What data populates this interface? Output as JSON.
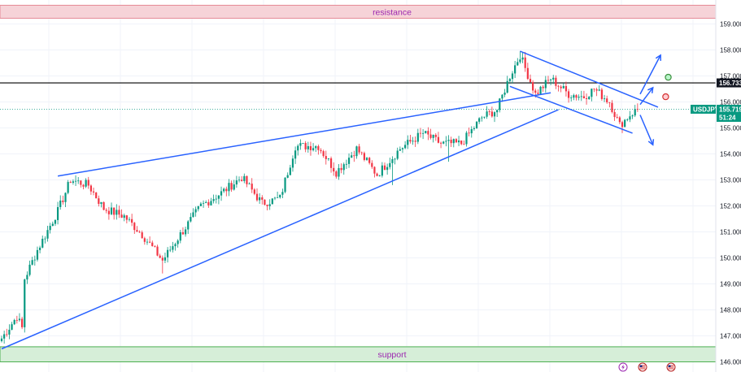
{
  "chart_data": {
    "type": "candlestick",
    "symbol": "USDJPY",
    "ylim": [
      146.0,
      159.75
    ],
    "y_ticks": [
      "159.000",
      "158.000",
      "157.000",
      "156.000",
      "155.000",
      "154.000",
      "153.000",
      "152.000",
      "151.000",
      "150.000",
      "149.000",
      "148.000",
      "147.000",
      "146.000"
    ],
    "grid": true,
    "zones": [
      {
        "name": "resistance",
        "label": "resistance",
        "low": 159.22,
        "high": 159.72,
        "color": "#f6d3d8",
        "border": "#e58a96",
        "text_color": "#9c27b0"
      },
      {
        "name": "support",
        "label": "support",
        "low": 146.0,
        "high": 146.58,
        "color": "#d6eed8",
        "border": "#4caf50",
        "text_color": "#9c27b0"
      }
    ],
    "horizontal_line": {
      "value": 156.733,
      "label": "156.733",
      "color": "#000000"
    },
    "last_price": {
      "value": 155.719,
      "label": "155.719",
      "countdown": "51:24",
      "color": "#089981"
    },
    "colors": {
      "up": "#089981",
      "down": "#f23645",
      "trendline": "#2962ff",
      "grid": "#f0f3fa"
    },
    "key_points": [
      {
        "bar": 0,
        "price": 146.9
      },
      {
        "bar": 6,
        "price": 147.75
      },
      {
        "bar": 8,
        "price": 147.3
      },
      {
        "bar": 9,
        "price": 149.2
      },
      {
        "bar": 14,
        "price": 150.3
      },
      {
        "bar": 22,
        "price": 151.8
      },
      {
        "bar": 27,
        "price": 153.0
      },
      {
        "bar": 34,
        "price": 152.8
      },
      {
        "bar": 40,
        "price": 151.9
      },
      {
        "bar": 48,
        "price": 151.6
      },
      {
        "bar": 55,
        "price": 150.9
      },
      {
        "bar": 63,
        "price": 149.9
      },
      {
        "bar": 70,
        "price": 150.9
      },
      {
        "bar": 78,
        "price": 152.0
      },
      {
        "bar": 86,
        "price": 152.5
      },
      {
        "bar": 94,
        "price": 153.1
      },
      {
        "bar": 102,
        "price": 152.1
      },
      {
        "bar": 109,
        "price": 152.3
      },
      {
        "bar": 115,
        "price": 154.3
      },
      {
        "bar": 124,
        "price": 154.3
      },
      {
        "bar": 131,
        "price": 153.3
      },
      {
        "bar": 139,
        "price": 154.2
      },
      {
        "bar": 147,
        "price": 153.2
      },
      {
        "bar": 156,
        "price": 154.2
      },
      {
        "bar": 165,
        "price": 154.8
      },
      {
        "bar": 172,
        "price": 154.4
      },
      {
        "bar": 180,
        "price": 154.4
      },
      {
        "bar": 188,
        "price": 155.4
      },
      {
        "bar": 194,
        "price": 155.7
      },
      {
        "bar": 199,
        "price": 157.0
      },
      {
        "bar": 203,
        "price": 157.8
      },
      {
        "bar": 209,
        "price": 156.3
      },
      {
        "bar": 215,
        "price": 156.9
      },
      {
        "bar": 222,
        "price": 156.3
      },
      {
        "bar": 228,
        "price": 156.2
      },
      {
        "bar": 232,
        "price": 156.5
      },
      {
        "bar": 238,
        "price": 156.0
      },
      {
        "bar": 242,
        "price": 155.1
      },
      {
        "bar": 246,
        "price": 155.5
      },
      {
        "bar": 249,
        "price": 155.72
      }
    ],
    "spikes": [
      {
        "bar": 175,
        "price": 153.7,
        "dir": "low"
      },
      {
        "bar": 153,
        "price": 152.8,
        "dir": "low"
      },
      {
        "bar": 63,
        "price": 149.4,
        "dir": "low"
      },
      {
        "bar": 203,
        "price": 157.95,
        "dir": "high"
      },
      {
        "bar": 243,
        "price": 154.8,
        "dir": "low"
      }
    ],
    "trendlines": [
      {
        "from": {
          "bar": 0,
          "price": 146.5
        },
        "to": {
          "bar": 218,
          "price": 155.7
        }
      },
      {
        "from": {
          "bar": 22,
          "price": 153.15
        },
        "to": {
          "bar": 215,
          "price": 156.35
        }
      },
      {
        "from": {
          "bar": 203,
          "price": 157.95
        },
        "to": {
          "bar": 257,
          "price": 155.8
        }
      },
      {
        "from": {
          "bar": 199,
          "price": 156.6
        },
        "to": {
          "bar": 247,
          "price": 154.8
        }
      }
    ],
    "arrows": [
      {
        "from": {
          "bar": 250,
          "price": 156.3
        },
        "to": {
          "bar": 258,
          "price": 157.8
        }
      },
      {
        "from": {
          "bar": 250,
          "price": 155.9
        },
        "to": {
          "bar": 255,
          "price": 156.55
        }
      },
      {
        "from": {
          "bar": 250,
          "price": 155.5
        },
        "to": {
          "bar": 255,
          "price": 154.35
        }
      }
    ],
    "markers": [
      {
        "name": "target-up-marker",
        "bar": 261,
        "price": 156.95,
        "fill": "#b9f6ca",
        "stroke": "#388e3c"
      },
      {
        "name": "target-down-marker",
        "bar": 260,
        "price": 156.2,
        "fill": "#ffcdd2",
        "stroke": "#d32f2f"
      }
    ],
    "bar_count": 250,
    "x_domain": [
      0,
      278
    ]
  }
}
